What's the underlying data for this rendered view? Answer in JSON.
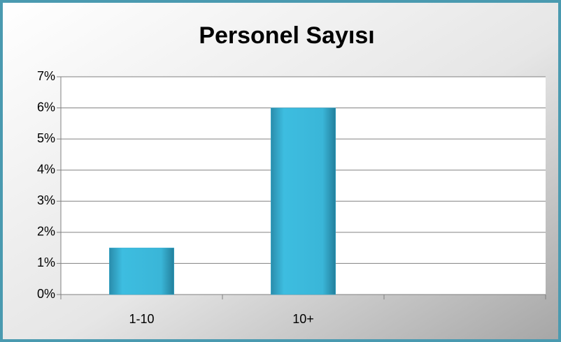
{
  "chart_data": {
    "type": "bar",
    "title": "Personel Sayısı",
    "categories": [
      "1-10",
      "10+",
      null
    ],
    "values": [
      1.5,
      6,
      null
    ],
    "color": "#36acd0",
    "ylim": [
      0,
      7
    ],
    "yticks": [
      {
        "value": 0,
        "label": "0%"
      },
      {
        "value": 1,
        "label": "1%"
      },
      {
        "value": 2,
        "label": "2%"
      },
      {
        "value": 3,
        "label": "3%"
      },
      {
        "value": 4,
        "label": "4%"
      },
      {
        "value": 5,
        "label": "5%"
      },
      {
        "value": 6,
        "label": "6%"
      },
      {
        "value": 7,
        "label": "7%"
      }
    ],
    "grid": true
  }
}
